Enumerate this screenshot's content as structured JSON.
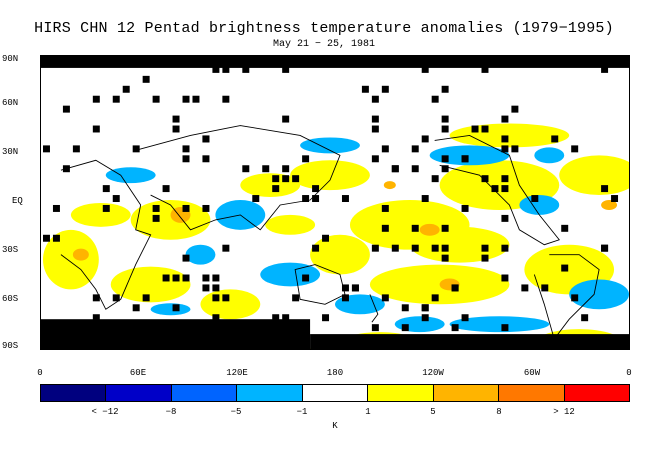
{
  "title": "HIRS CHN 12 Pentad brightness temperature anomalies (1979−1995)",
  "subtitle": "May 21 − 25, 1981",
  "lat_labels": [
    "90N",
    "60N",
    "30N",
    "EQ",
    "30S",
    "60S",
    "90S"
  ],
  "lon_labels": [
    "0",
    "60E",
    "120E",
    "180",
    "120W",
    "60W",
    "0"
  ],
  "colorbar": {
    "colors": [
      "#00007f",
      "#0000c8",
      "#0064ff",
      "#00b4ff",
      "#ffffff",
      "#ffff00",
      "#ffb400",
      "#ff7800",
      "#ff0000"
    ],
    "labels": [
      "< −12",
      "−8",
      "−5",
      "−1",
      "1",
      "5",
      "8",
      "> 12"
    ],
    "unit": "K"
  },
  "map_colors": {
    "missing": "#000000",
    "coast": "#000000",
    "warm1": "#ffff00",
    "warm2": "#ffb400",
    "cold1": "#00b4ff"
  }
}
